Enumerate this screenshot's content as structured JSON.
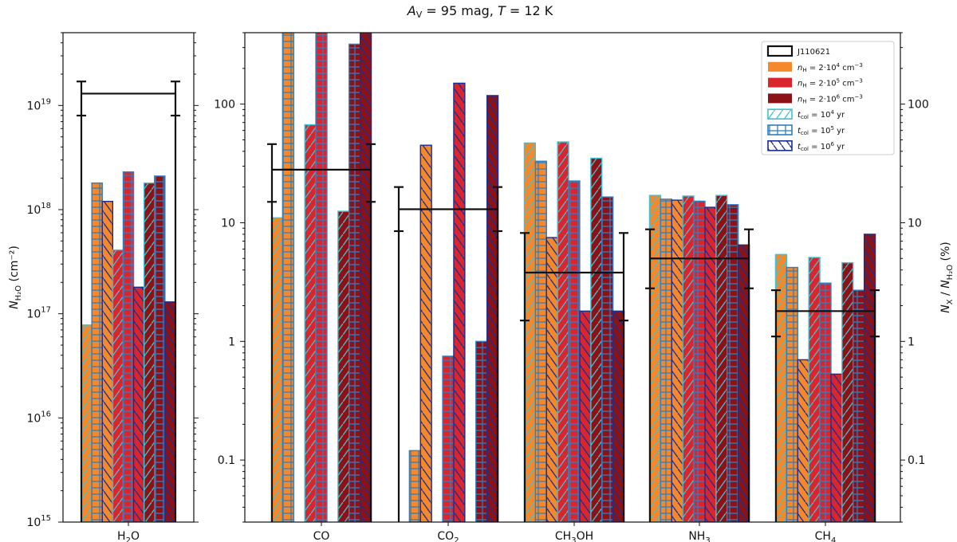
{
  "chart_data": [
    {
      "type": "bar",
      "panel": "left",
      "title_parts": [
        "A",
        "V",
        " = 95 mag,  ",
        "T",
        " = 12 K"
      ],
      "ylabel_parts": [
        "N",
        "H₂O",
        "  (cm⁻²)"
      ],
      "yscale": "log",
      "ylim": [
        1000000000000000.0,
        5e+19
      ],
      "yticks": [
        {
          "value": 1000000000000000.0,
          "base": "10",
          "exp": "15"
        },
        {
          "value": 1e+16,
          "base": "10",
          "exp": "16"
        },
        {
          "value": 1e+17,
          "base": "10",
          "exp": "17"
        },
        {
          "value": 1e+18,
          "base": "10",
          "exp": "18"
        },
        {
          "value": 1e+19,
          "base": "10",
          "exp": "19"
        }
      ],
      "categories": [
        {
          "label": "H",
          "sub": "2",
          "tail": "O"
        }
      ],
      "observed": [
        {
          "value": 1.3e+19,
          "err_low": 8e+18,
          "err_high": 1.7e+19
        }
      ],
      "bars": [
        [
          {
            "value": 7.8e+16,
            "density": 0,
            "time": 0
          },
          {
            "value": 1.8e+18,
            "density": 0,
            "time": 1
          },
          {
            "value": 1.2e+18,
            "density": 0,
            "time": 2
          },
          {
            "value": 4.1e+17,
            "density": 1,
            "time": 0
          },
          {
            "value": 2.3e+18,
            "density": 1,
            "time": 1
          },
          {
            "value": 1.8e+17,
            "density": 1,
            "time": 2
          },
          {
            "value": 1.8e+18,
            "density": 2,
            "time": 0
          },
          {
            "value": 2.1e+18,
            "density": 2,
            "time": 1
          },
          {
            "value": 1.3e+17,
            "density": 2,
            "time": 2
          }
        ]
      ]
    },
    {
      "type": "bar",
      "panel": "right",
      "ylabel_parts": [
        "N",
        "X",
        " / ",
        "N",
        "H₂O",
        "  (%)"
      ],
      "yscale": "log",
      "ylim": [
        0.03,
        400
      ],
      "yticks": [
        {
          "value": 0.1,
          "label": "0.1"
        },
        {
          "value": 1,
          "label": "1"
        },
        {
          "value": 10,
          "label": "10"
        },
        {
          "value": 100,
          "label": "100"
        }
      ],
      "categories": [
        {
          "label": "CO",
          "sub": "",
          "tail": ""
        },
        {
          "label": "CO",
          "sub": "2",
          "tail": ""
        },
        {
          "label": "CH",
          "sub": "3",
          "tail": "OH"
        },
        {
          "label": "NH",
          "sub": "3",
          "tail": ""
        },
        {
          "label": "CH",
          "sub": "4",
          "tail": ""
        }
      ],
      "observed": [
        {
          "value": 28,
          "err_low": 15,
          "err_high": 46
        },
        {
          "value": 13,
          "err_low": 8.5,
          "err_high": 20
        },
        {
          "value": 3.8,
          "err_low": 1.5,
          "err_high": 8.2
        },
        {
          "value": 5.0,
          "err_low": 2.8,
          "err_high": 8.8
        },
        {
          "value": 1.8,
          "err_low": 1.1,
          "err_high": 2.7
        }
      ],
      "bars": [
        [
          {
            "value": 11,
            "density": 0,
            "time": 0
          },
          {
            "value": 400,
            "density": 0,
            "time": 1
          },
          {
            "value": 0.03,
            "density": 0,
            "time": 2
          },
          {
            "value": 67,
            "density": 1,
            "time": 0
          },
          {
            "value": 400,
            "density": 1,
            "time": 1
          },
          {
            "value": 0.03,
            "density": 1,
            "time": 2
          },
          {
            "value": 12.5,
            "density": 2,
            "time": 0
          },
          {
            "value": 320,
            "density": 2,
            "time": 1
          },
          {
            "value": 400,
            "density": 2,
            "time": 2
          }
        ],
        [
          {
            "value": 0.03,
            "density": 0,
            "time": 0
          },
          {
            "value": 0.12,
            "density": 0,
            "time": 1
          },
          {
            "value": 45,
            "density": 0,
            "time": 2
          },
          {
            "value": 0.03,
            "density": 1,
            "time": 0
          },
          {
            "value": 0.75,
            "density": 1,
            "time": 1
          },
          {
            "value": 150,
            "density": 1,
            "time": 2
          },
          {
            "value": 0.03,
            "density": 2,
            "time": 0
          },
          {
            "value": 1.0,
            "density": 2,
            "time": 1
          },
          {
            "value": 118,
            "density": 2,
            "time": 2
          }
        ],
        [
          {
            "value": 47,
            "density": 0,
            "time": 0
          },
          {
            "value": 33,
            "density": 0,
            "time": 1
          },
          {
            "value": 7.5,
            "density": 0,
            "time": 2
          },
          {
            "value": 48,
            "density": 1,
            "time": 0
          },
          {
            "value": 22.5,
            "density": 1,
            "time": 1
          },
          {
            "value": 1.8,
            "density": 1,
            "time": 2
          },
          {
            "value": 35,
            "density": 2,
            "time": 0
          },
          {
            "value": 16.5,
            "density": 2,
            "time": 1
          },
          {
            "value": 1.8,
            "density": 2,
            "time": 2
          }
        ],
        [
          {
            "value": 17,
            "density": 0,
            "time": 0
          },
          {
            "value": 15.8,
            "density": 0,
            "time": 1
          },
          {
            "value": 15.5,
            "density": 0,
            "time": 2
          },
          {
            "value": 16.8,
            "density": 1,
            "time": 0
          },
          {
            "value": 15.2,
            "density": 1,
            "time": 1
          },
          {
            "value": 13.5,
            "density": 1,
            "time": 2
          },
          {
            "value": 17,
            "density": 2,
            "time": 0
          },
          {
            "value": 14.2,
            "density": 2,
            "time": 1
          },
          {
            "value": 6.5,
            "density": 2,
            "time": 2
          }
        ],
        [
          {
            "value": 5.4,
            "density": 0,
            "time": 0
          },
          {
            "value": 4.2,
            "density": 0,
            "time": 1
          },
          {
            "value": 0.7,
            "density": 0,
            "time": 2
          },
          {
            "value": 5.1,
            "density": 1,
            "time": 0
          },
          {
            "value": 3.1,
            "density": 1,
            "time": 1
          },
          {
            "value": 0.53,
            "density": 1,
            "time": 2
          },
          {
            "value": 4.6,
            "density": 2,
            "time": 0
          },
          {
            "value": 2.7,
            "density": 2,
            "time": 1
          },
          {
            "value": 8.0,
            "density": 2,
            "time": 2
          }
        ]
      ]
    }
  ],
  "legend": {
    "placement": "top-right",
    "observed_label": "J110621",
    "density_entries": [
      {
        "pre": "n",
        "sub": "H",
        "post": " = 2·10",
        "exp": "4",
        "unit": " cm",
        "unit_exp": "−3",
        "color": "#f5882a"
      },
      {
        "pre": "n",
        "sub": "H",
        "post": " = 2·10",
        "exp": "5",
        "unit": " cm",
        "unit_exp": "−3",
        "color": "#d9262e"
      },
      {
        "pre": "n",
        "sub": "H",
        "post": " = 2·10",
        "exp": "6",
        "unit": " cm",
        "unit_exp": "−3",
        "color": "#8b1318"
      }
    ],
    "time_entries": [
      {
        "pre": "t",
        "sub": "col",
        "post": " = 10",
        "exp": "4",
        "unit": " yr",
        "color": "#3cc3d3",
        "hatch": "diag"
      },
      {
        "pre": "t",
        "sub": "col",
        "post": " = 10",
        "exp": "5",
        "unit": " yr",
        "color": "#2e7ec2",
        "hatch": "grid"
      },
      {
        "pre": "t",
        "sub": "col",
        "post": " = 10",
        "exp": "6",
        "unit": " yr",
        "color": "#1c2d8c",
        "hatch": "back"
      }
    ]
  },
  "colors": {
    "observed": "#111111",
    "densities": [
      "#f5882a",
      "#d9262e",
      "#8b1318"
    ],
    "times": [
      "#3cc3d3",
      "#2e7ec2",
      "#1c2d8c"
    ]
  }
}
